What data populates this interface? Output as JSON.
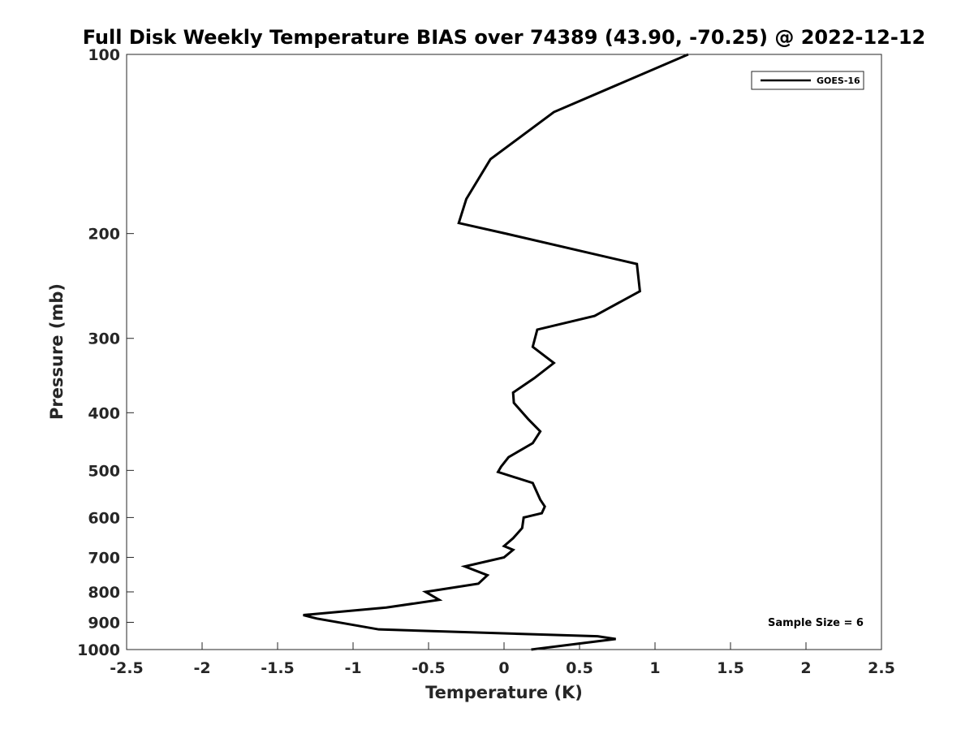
{
  "chart_data": {
    "type": "line",
    "title": "Full Disk Weekly Temperature BIAS over 74389 (43.90, -70.25) @ 2022-12-12",
    "xlabel": "Temperature (K)",
    "ylabel": "Pressure (mb)",
    "xlim": [
      -2.5,
      2.5
    ],
    "ylim": [
      1000,
      100
    ],
    "yscale": "log",
    "y_reversed": true,
    "xticks": [
      -2.5,
      -2,
      -1.5,
      -1,
      -0.5,
      0,
      0.5,
      1,
      1.5,
      2,
      2.5
    ],
    "xtick_labels": [
      "-2.5",
      "-2",
      "-1.5",
      "-1",
      "-0.5",
      "0",
      "0.5",
      "1",
      "1.5",
      "2",
      "2.5"
    ],
    "yticks": [
      100,
      200,
      300,
      400,
      500,
      600,
      700,
      800,
      900,
      1000
    ],
    "ytick_labels": [
      "100",
      "200",
      "300",
      "400",
      "500",
      "600",
      "700",
      "800",
      "900",
      "1000"
    ],
    "grid": false,
    "legend_position": "top-right",
    "annotation": "Sample Size = 6",
    "series": [
      {
        "name": "GOES-16",
        "color": "#000000",
        "points": [
          {
            "x": 1.22,
            "y": 100
          },
          {
            "x": 0.33,
            "y": 125
          },
          {
            "x": -0.09,
            "y": 150
          },
          {
            "x": -0.25,
            "y": 175
          },
          {
            "x": -0.3,
            "y": 192
          },
          {
            "x": 0.01,
            "y": 200
          },
          {
            "x": 0.88,
            "y": 225
          },
          {
            "x": 0.9,
            "y": 250
          },
          {
            "x": 0.6,
            "y": 275
          },
          {
            "x": 0.22,
            "y": 290
          },
          {
            "x": 0.19,
            "y": 310
          },
          {
            "x": 0.33,
            "y": 330
          },
          {
            "x": 0.2,
            "y": 350
          },
          {
            "x": 0.06,
            "y": 370
          },
          {
            "x": 0.065,
            "y": 385
          },
          {
            "x": 0.16,
            "y": 410
          },
          {
            "x": 0.24,
            "y": 430
          },
          {
            "x": 0.19,
            "y": 450
          },
          {
            "x": 0.03,
            "y": 475
          },
          {
            "x": -0.02,
            "y": 493
          },
          {
            "x": -0.04,
            "y": 503
          },
          {
            "x": 0.19,
            "y": 525
          },
          {
            "x": 0.24,
            "y": 560
          },
          {
            "x": 0.27,
            "y": 575
          },
          {
            "x": 0.25,
            "y": 590
          },
          {
            "x": 0.13,
            "y": 600
          },
          {
            "x": 0.12,
            "y": 625
          },
          {
            "x": 0.06,
            "y": 650
          },
          {
            "x": 0.0,
            "y": 670
          },
          {
            "x": 0.06,
            "y": 680
          },
          {
            "x": 0.0,
            "y": 700
          },
          {
            "x": -0.26,
            "y": 725
          },
          {
            "x": -0.11,
            "y": 750
          },
          {
            "x": -0.17,
            "y": 775
          },
          {
            "x": -0.52,
            "y": 800
          },
          {
            "x": -0.43,
            "y": 825
          },
          {
            "x": -0.78,
            "y": 850
          },
          {
            "x": -1.33,
            "y": 875
          },
          {
            "x": -1.24,
            "y": 887
          },
          {
            "x": -0.83,
            "y": 925
          },
          {
            "x": 0.62,
            "y": 950
          },
          {
            "x": 0.74,
            "y": 960
          },
          {
            "x": 0.18,
            "y": 1000
          }
        ]
      }
    ]
  }
}
